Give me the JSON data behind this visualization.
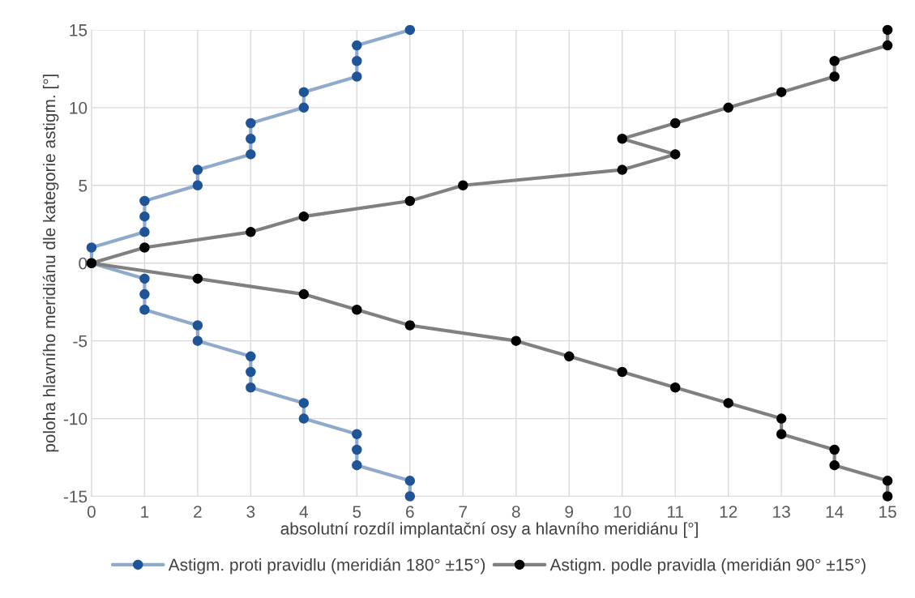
{
  "chart_data": {
    "type": "line",
    "xlabel": "absolutní rozdíl implantační osy a hlavního meridiánu [°]",
    "ylabel": "poloha hlavního meridiánu dle kategorie astigm. [°]",
    "series": [
      {
        "name": "Astigm. proti pravidlu (meridián 180° ±15°)",
        "color": "#1f5597",
        "x": [
          6,
          5,
          5,
          5,
          4,
          4,
          3,
          3,
          3,
          2,
          2,
          1,
          1,
          1,
          0,
          0,
          1,
          1,
          1,
          2,
          2,
          3,
          3,
          3,
          4,
          4,
          5,
          5,
          5,
          6,
          6
        ],
        "values": [
          15,
          14,
          13,
          12,
          11,
          10,
          9,
          8,
          7,
          6,
          5,
          4,
          3,
          2,
          1,
          0,
          -1,
          -2,
          -3,
          -4,
          -5,
          -6,
          -7,
          -8,
          -9,
          -10,
          -11,
          -12,
          -13,
          -14,
          -15
        ]
      },
      {
        "name": "Astigm. podle pravidla (meridián 90° ±15°)",
        "color": "#000000",
        "x": [
          15,
          15,
          14,
          14,
          13,
          12,
          11,
          10,
          11,
          10,
          7,
          6,
          4,
          3,
          1,
          0,
          2,
          4,
          5,
          6,
          8,
          9,
          10,
          11,
          12,
          13,
          13,
          14,
          14,
          15,
          15
        ],
        "values": [
          15,
          14,
          13,
          12,
          11,
          10,
          9,
          8,
          7,
          6,
          5,
          4,
          3,
          2,
          1,
          0,
          -1,
          -2,
          -3,
          -4,
          -5,
          -6,
          -7,
          -8,
          -9,
          -10,
          -11,
          -12,
          -13,
          -14,
          -15
        ]
      }
    ],
    "xlim": [
      0,
      15
    ],
    "xticks": [
      0,
      1,
      2,
      3,
      4,
      5,
      6,
      7,
      8,
      9,
      10,
      11,
      12,
      13,
      14,
      15
    ],
    "ylim": [
      -15,
      15
    ],
    "yticks": [
      -15,
      -10,
      -5,
      0,
      5,
      10,
      15
    ],
    "grid": true,
    "legend": "bottom",
    "marker": "circle",
    "line_style": "solid"
  }
}
